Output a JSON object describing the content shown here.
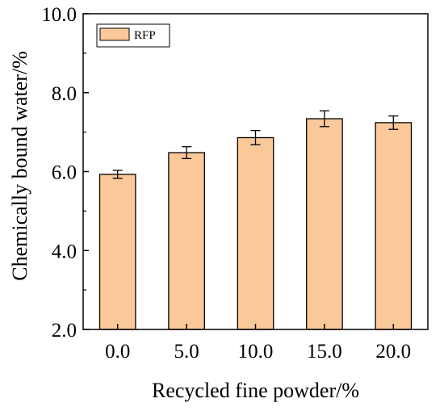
{
  "chart_data": {
    "type": "bar",
    "categories": [
      "0.0",
      "5.0",
      "10.0",
      "15.0",
      "20.0"
    ],
    "series": [
      {
        "name": "RFP",
        "values": [
          5.93,
          6.48,
          6.86,
          7.34,
          7.24
        ],
        "errors": [
          0.1,
          0.15,
          0.18,
          0.2,
          0.17
        ]
      }
    ],
    "xlabel": "Recycled fine powder/%",
    "ylabel": "Chemically bound water/%",
    "ylim": [
      2.0,
      10.0
    ],
    "yticks": [
      "2.0",
      "4.0",
      "6.0",
      "8.0",
      "10.0"
    ],
    "ytick_values": [
      2.0,
      4.0,
      6.0,
      8.0,
      10.0
    ],
    "legend_position": "top-left",
    "grid": false,
    "bar_color": "#FBC89A",
    "edge_color": "#000000"
  }
}
